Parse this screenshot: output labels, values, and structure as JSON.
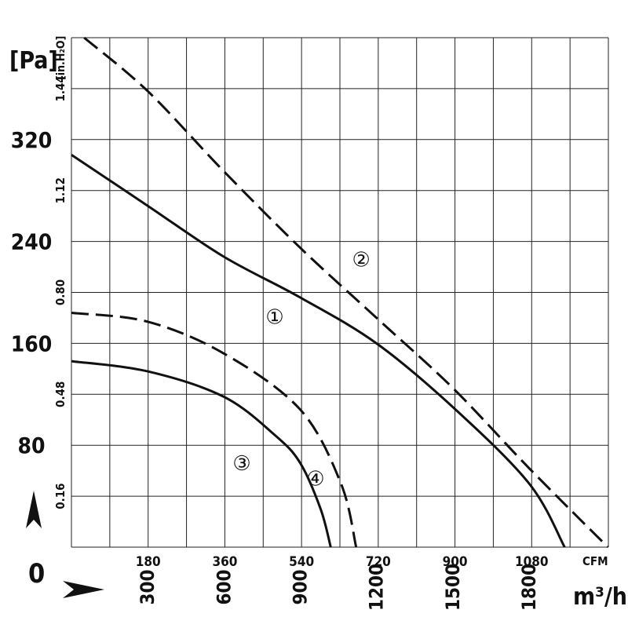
{
  "chart_data": {
    "type": "line",
    "title": "",
    "x_axis": {
      "primary": {
        "label": "m³/h",
        "ticks": [
          300,
          600,
          900,
          1200,
          1500,
          1800
        ],
        "range": [
          0,
          2112
        ]
      },
      "secondary": {
        "label": "CFM",
        "ticks": [
          180,
          360,
          540,
          720,
          900,
          1080
        ]
      }
    },
    "y_axis": {
      "primary": {
        "label": "[Pa]",
        "ticks": [
          0,
          80,
          160,
          240,
          320
        ],
        "range": [
          0,
          400
        ]
      },
      "secondary": {
        "label": "[in.H₂O]",
        "ticks": [
          0.16,
          0.48,
          0.8,
          1.12,
          1.44
        ]
      }
    },
    "grid": true,
    "series": [
      {
        "name": "①",
        "style": "solid",
        "points": [
          [
            0,
            308
          ],
          [
            300,
            268
          ],
          [
            600,
            228
          ],
          [
            900,
            196
          ],
          [
            1200,
            160
          ],
          [
            1500,
            110
          ],
          [
            1800,
            50
          ],
          [
            1940,
            0
          ]
        ]
      },
      {
        "name": "②",
        "style": "dashed",
        "points": [
          [
            50,
            400
          ],
          [
            300,
            358
          ],
          [
            600,
            295
          ],
          [
            900,
            235
          ],
          [
            1200,
            180
          ],
          [
            1500,
            125
          ],
          [
            1800,
            62
          ],
          [
            2110,
            0
          ]
        ]
      },
      {
        "name": "③",
        "style": "solid",
        "points": [
          [
            0,
            146
          ],
          [
            300,
            138
          ],
          [
            600,
            118
          ],
          [
            800,
            88
          ],
          [
            900,
            66
          ],
          [
            980,
            30
          ],
          [
            1020,
            0
          ]
        ]
      },
      {
        "name": "④",
        "style": "dashed",
        "points": [
          [
            0,
            184
          ],
          [
            300,
            177
          ],
          [
            600,
            152
          ],
          [
            900,
            108
          ],
          [
            1060,
            50
          ],
          [
            1120,
            0
          ]
        ]
      }
    ],
    "labels": [
      {
        "text": "①",
        "x": 800,
        "y": 181
      },
      {
        "text": "②",
        "x": 1140,
        "y": 226
      },
      {
        "text": "③",
        "x": 670,
        "y": 66
      },
      {
        "text": "④",
        "x": 960,
        "y": 54
      }
    ],
    "origin_label": "0"
  }
}
